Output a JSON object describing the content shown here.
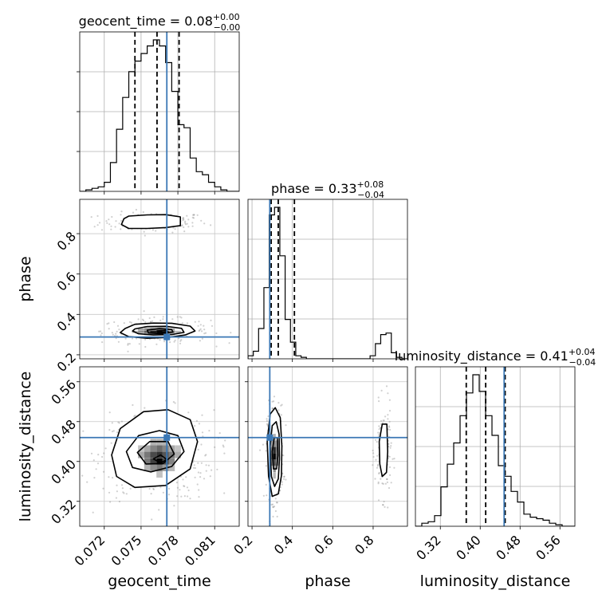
{
  "chart_data": {
    "type": "corner",
    "grid": true,
    "truth_color": "#3b78b5",
    "line_color": "#000000",
    "parameters": [
      {
        "name": "geocent_time",
        "label": "geocent_time",
        "title_name": "geocent_time",
        "title_value": "0.08",
        "title_plus": "+0.00",
        "title_minus": "−0.00",
        "range": [
          0.07,
          0.083
        ],
        "ticks": [
          0.072,
          0.075,
          0.078,
          0.081
        ],
        "tick_labels": [
          "0.072",
          "0.075",
          "0.078",
          "0.081"
        ],
        "truth": 0.0771,
        "quantiles": [
          0.0745,
          0.0763,
          0.0781
        ],
        "histogram": {
          "bin_edges": [
            0.07,
            0.0705,
            0.071,
            0.0715,
            0.072,
            0.0725,
            0.073,
            0.0735,
            0.074,
            0.0745,
            0.075,
            0.0755,
            0.076,
            0.0765,
            0.077,
            0.0775,
            0.078,
            0.0785,
            0.079,
            0.0795,
            0.08,
            0.0805,
            0.081,
            0.0815,
            0.082,
            0.0825,
            0.083
          ],
          "density": [
            0.0,
            0.01,
            0.02,
            0.03,
            0.06,
            0.19,
            0.41,
            0.62,
            0.79,
            0.86,
            0.91,
            0.96,
            1.0,
            0.96,
            0.85,
            0.66,
            0.44,
            0.42,
            0.22,
            0.13,
            0.11,
            0.06,
            0.03,
            0.01,
            0.0,
            0.0
          ]
        }
      },
      {
        "name": "phase",
        "label": "phase",
        "title_name": "phase",
        "title_value": "0.33",
        "title_plus": "+0.08",
        "title_minus": "−0.04",
        "range": [
          0.18,
          0.97
        ],
        "ticks": [
          0.2,
          0.4,
          0.6,
          0.8
        ],
        "tick_labels": [
          "0.2",
          "0.4",
          "0.6",
          "0.8"
        ],
        "truth": 0.288,
        "quantiles": [
          0.295,
          0.33,
          0.41
        ],
        "histogram": {
          "bin_edges": [
            0.18,
            0.2063,
            0.2326,
            0.2589,
            0.2852,
            0.3115,
            0.3378,
            0.3641,
            0.3904,
            0.4167,
            0.443,
            0.4693,
            0.4956,
            0.5219,
            0.5482,
            0.5745,
            0.6008,
            0.6271,
            0.6534,
            0.6797,
            0.706,
            0.7323,
            0.7586,
            0.7849,
            0.8112,
            0.8375,
            0.8638,
            0.8901,
            0.9164,
            0.9427,
            0.97
          ],
          "density": [
            0.02,
            0.05,
            0.2,
            0.47,
            0.95,
            1.0,
            0.68,
            0.26,
            0.11,
            0.02,
            0.01,
            0,
            0,
            0,
            0,
            0,
            0,
            0,
            0,
            0,
            0,
            0,
            0,
            0.02,
            0.1,
            0.16,
            0.17,
            0.04,
            0.01,
            0.0
          ]
        }
      },
      {
        "name": "luminosity_distance",
        "label": "luminosity_distance",
        "title_name": "luminosity_distance",
        "title_value": "0.41",
        "title_plus": "+0.04",
        "title_minus": "−0.04",
        "range": [
          0.27,
          0.59
        ],
        "ticks": [
          0.32,
          0.4,
          0.48,
          0.56
        ],
        "tick_labels": [
          "0.32",
          "0.40",
          "0.48",
          "0.56"
        ],
        "truth": 0.448,
        "quantiles": [
          0.372,
          0.411,
          0.45
        ],
        "histogram": {
          "bin_edges": [
            0.27,
            0.2828,
            0.2956,
            0.3084,
            0.3212,
            0.334,
            0.3468,
            0.3596,
            0.3724,
            0.3852,
            0.398,
            0.4108,
            0.4236,
            0.4364,
            0.4492,
            0.462,
            0.4748,
            0.4876,
            0.5004,
            0.5132,
            0.526,
            0.5388,
            0.5516,
            0.5644,
            0.5772,
            0.59
          ],
          "density": [
            0.0,
            0.02,
            0.03,
            0.07,
            0.26,
            0.41,
            0.55,
            0.73,
            0.88,
            1.0,
            0.89,
            0.73,
            0.6,
            0.4,
            0.33,
            0.23,
            0.16,
            0.08,
            0.06,
            0.05,
            0.04,
            0.02,
            0.01,
            0.0,
            0.0
          ]
        }
      }
    ],
    "pairs": [
      {
        "x": "geocent_time",
        "y": "phase",
        "truth": [
          0.0771,
          0.288
        ],
        "contours": [
          [
            [
              0.0736,
              0.874
            ],
            [
              0.074,
              0.887
            ],
            [
              0.0755,
              0.893
            ],
            [
              0.077,
              0.894
            ],
            [
              0.0782,
              0.883
            ],
            [
              0.0782,
              0.84
            ],
            [
              0.077,
              0.83
            ],
            [
              0.0755,
              0.826
            ],
            [
              0.074,
              0.826
            ],
            [
              0.0734,
              0.845
            ]
          ],
          [
            [
              0.0737,
              0.33
            ],
            [
              0.0745,
              0.351
            ],
            [
              0.076,
              0.357
            ],
            [
              0.0775,
              0.356
            ],
            [
              0.079,
              0.342
            ],
            [
              0.0794,
              0.318
            ],
            [
              0.0786,
              0.298
            ],
            [
              0.0772,
              0.286
            ],
            [
              0.0755,
              0.282
            ],
            [
              0.074,
              0.29
            ],
            [
              0.0733,
              0.31
            ]
          ],
          [
            [
              0.0745,
              0.328
            ],
            [
              0.0755,
              0.34
            ],
            [
              0.077,
              0.341
            ],
            [
              0.0783,
              0.331
            ],
            [
              0.0785,
              0.311
            ],
            [
              0.0775,
              0.3
            ],
            [
              0.076,
              0.298
            ],
            [
              0.0748,
              0.304
            ],
            [
              0.0743,
              0.318
            ]
          ],
          [
            [
              0.0755,
              0.322
            ],
            [
              0.0765,
              0.33
            ],
            [
              0.0775,
              0.325
            ],
            [
              0.0776,
              0.312
            ],
            [
              0.0766,
              0.305
            ],
            [
              0.0756,
              0.308
            ]
          ],
          [
            [
              0.0763,
              0.318
            ],
            [
              0.077,
              0.321
            ],
            [
              0.0772,
              0.314
            ],
            [
              0.0765,
              0.31
            ]
          ]
        ],
        "density_cells": [
          [
            0.076,
            0.3135,
            0.9
          ],
          [
            0.0765,
            0.3135,
            1.0
          ],
          [
            0.077,
            0.3135,
            0.7
          ],
          [
            0.0755,
            0.3135,
            0.6
          ],
          [
            0.076,
            0.3247,
            0.55
          ],
          [
            0.0765,
            0.3247,
            0.6
          ],
          [
            0.077,
            0.3247,
            0.45
          ],
          [
            0.0755,
            0.3247,
            0.4
          ],
          [
            0.075,
            0.3135,
            0.4
          ],
          [
            0.0775,
            0.3135,
            0.45
          ],
          [
            0.075,
            0.3247,
            0.3
          ],
          [
            0.0775,
            0.3247,
            0.3
          ],
          [
            0.076,
            0.3023,
            0.4
          ],
          [
            0.0765,
            0.3023,
            0.45
          ],
          [
            0.077,
            0.3023,
            0.3
          ],
          [
            0.0745,
            0.3135,
            0.2
          ],
          [
            0.078,
            0.3135,
            0.22
          ],
          [
            0.0755,
            0.3023,
            0.22
          ],
          [
            0.0775,
            0.3023,
            0.2
          ],
          [
            0.0755,
            0.336,
            0.2
          ],
          [
            0.077,
            0.336,
            0.22
          ],
          [
            0.076,
            0.336,
            0.25
          ],
          [
            0.0765,
            0.336,
            0.25
          ]
        ],
        "scatter_clusters": [
          {
            "center": [
              0.076,
              0.856
            ],
            "spread": [
              0.0022,
              0.025
            ],
            "n": 160
          },
          {
            "center": [
              0.0762,
              0.318
            ],
            "spread": [
              0.0022,
              0.03
            ],
            "n": 240
          }
        ]
      },
      {
        "x": "geocent_time",
        "y": "luminosity_distance",
        "truth": [
          0.0771,
          0.448
        ],
        "contours": [
          [
            [
              0.0726,
              0.413
            ],
            [
              0.0733,
              0.466
            ],
            [
              0.0752,
              0.5
            ],
            [
              0.0772,
              0.504
            ],
            [
              0.079,
              0.484
            ],
            [
              0.0796,
              0.44
            ],
            [
              0.079,
              0.385
            ],
            [
              0.077,
              0.352
            ],
            [
              0.0745,
              0.348
            ],
            [
              0.073,
              0.37
            ]
          ],
          [
            [
              0.0738,
              0.42
            ],
            [
              0.0748,
              0.452
            ],
            [
              0.0765,
              0.462
            ],
            [
              0.078,
              0.452
            ],
            [
              0.0785,
              0.42
            ],
            [
              0.0775,
              0.39
            ],
            [
              0.0758,
              0.379
            ],
            [
              0.0743,
              0.388
            ]
          ],
          [
            [
              0.0747,
              0.418
            ],
            [
              0.0757,
              0.44
            ],
            [
              0.0772,
              0.44
            ],
            [
              0.0777,
              0.415
            ],
            [
              0.0768,
              0.396
            ],
            [
              0.0754,
              0.395
            ]
          ],
          [
            [
              0.076,
              0.405
            ],
            [
              0.0766,
              0.413
            ],
            [
              0.0771,
              0.404
            ],
            [
              0.0766,
              0.397
            ]
          ]
        ],
        "density_cells": [
          [
            0.0765,
            0.4,
            1.0
          ],
          [
            0.076,
            0.4,
            0.75
          ],
          [
            0.077,
            0.4,
            0.7
          ],
          [
            0.0765,
            0.413,
            0.8
          ],
          [
            0.076,
            0.413,
            0.7
          ],
          [
            0.077,
            0.413,
            0.65
          ],
          [
            0.0755,
            0.413,
            0.5
          ],
          [
            0.0775,
            0.413,
            0.5
          ],
          [
            0.0765,
            0.426,
            0.55
          ],
          [
            0.076,
            0.426,
            0.45
          ],
          [
            0.077,
            0.426,
            0.45
          ],
          [
            0.0755,
            0.4,
            0.5
          ],
          [
            0.0775,
            0.4,
            0.45
          ],
          [
            0.0765,
            0.387,
            0.5
          ],
          [
            0.076,
            0.387,
            0.4
          ],
          [
            0.077,
            0.387,
            0.35
          ],
          [
            0.075,
            0.413,
            0.3
          ],
          [
            0.078,
            0.413,
            0.28
          ],
          [
            0.0755,
            0.426,
            0.3
          ],
          [
            0.0775,
            0.426,
            0.3
          ],
          [
            0.0765,
            0.439,
            0.25
          ],
          [
            0.076,
            0.439,
            0.25
          ],
          [
            0.077,
            0.439,
            0.25
          ],
          [
            0.0755,
            0.387,
            0.25
          ],
          [
            0.0775,
            0.387,
            0.22
          ],
          [
            0.0765,
            0.374,
            0.18
          ],
          [
            0.075,
            0.426,
            0.18
          ],
          [
            0.078,
            0.426,
            0.18
          ]
        ],
        "scatter_clusters": [
          {
            "center": [
              0.0763,
              0.412
            ],
            "spread": [
              0.0023,
              0.045
            ],
            "n": 420
          }
        ]
      },
      {
        "x": "phase",
        "y": "luminosity_distance",
        "truth": [
          0.288,
          0.448
        ],
        "contours": [
          [
            [
              0.275,
              0.44
            ],
            [
              0.29,
              0.495
            ],
            [
              0.315,
              0.508
            ],
            [
              0.34,
              0.488
            ],
            [
              0.348,
              0.43
            ],
            [
              0.346,
              0.372
            ],
            [
              0.33,
              0.335
            ],
            [
              0.3,
              0.33
            ],
            [
              0.282,
              0.37
            ]
          ],
          [
            [
              0.29,
              0.43
            ],
            [
              0.3,
              0.472
            ],
            [
              0.32,
              0.48
            ],
            [
              0.334,
              0.455
            ],
            [
              0.336,
              0.405
            ],
            [
              0.33,
              0.365
            ],
            [
              0.312,
              0.35
            ],
            [
              0.296,
              0.37
            ]
          ],
          [
            [
              0.3,
              0.42
            ],
            [
              0.31,
              0.448
            ],
            [
              0.325,
              0.448
            ],
            [
              0.328,
              0.412
            ],
            [
              0.322,
              0.385
            ],
            [
              0.306,
              0.385
            ]
          ],
          [
            [
              0.83,
              0.44
            ],
            [
              0.845,
              0.475
            ],
            [
              0.868,
              0.475
            ],
            [
              0.872,
              0.42
            ],
            [
              0.866,
              0.378
            ],
            [
              0.845,
              0.37
            ],
            [
              0.833,
              0.395
            ]
          ]
        ],
        "density_cells": [
          [
            0.3115,
            0.41,
            1.0
          ],
          [
            0.3115,
            0.423,
            0.85
          ],
          [
            0.3115,
            0.398,
            0.7
          ],
          [
            0.2984,
            0.41,
            0.55
          ],
          [
            0.3246,
            0.41,
            0.5
          ],
          [
            0.2984,
            0.423,
            0.45
          ],
          [
            0.3246,
            0.423,
            0.45
          ],
          [
            0.3115,
            0.436,
            0.45
          ],
          [
            0.3115,
            0.385,
            0.4
          ],
          [
            0.2984,
            0.398,
            0.35
          ],
          [
            0.3246,
            0.398,
            0.35
          ],
          [
            0.2984,
            0.436,
            0.3
          ],
          [
            0.3246,
            0.436,
            0.3
          ],
          [
            0.3115,
            0.449,
            0.25
          ],
          [
            0.3115,
            0.372,
            0.22
          ]
        ],
        "scatter_clusters": [
          {
            "center": [
              0.315,
              0.415
            ],
            "spread": [
              0.02,
              0.048
            ],
            "n": 320
          },
          {
            "center": [
              0.85,
              0.42
            ],
            "spread": [
              0.02,
              0.045
            ],
            "n": 170
          }
        ]
      }
    ]
  }
}
